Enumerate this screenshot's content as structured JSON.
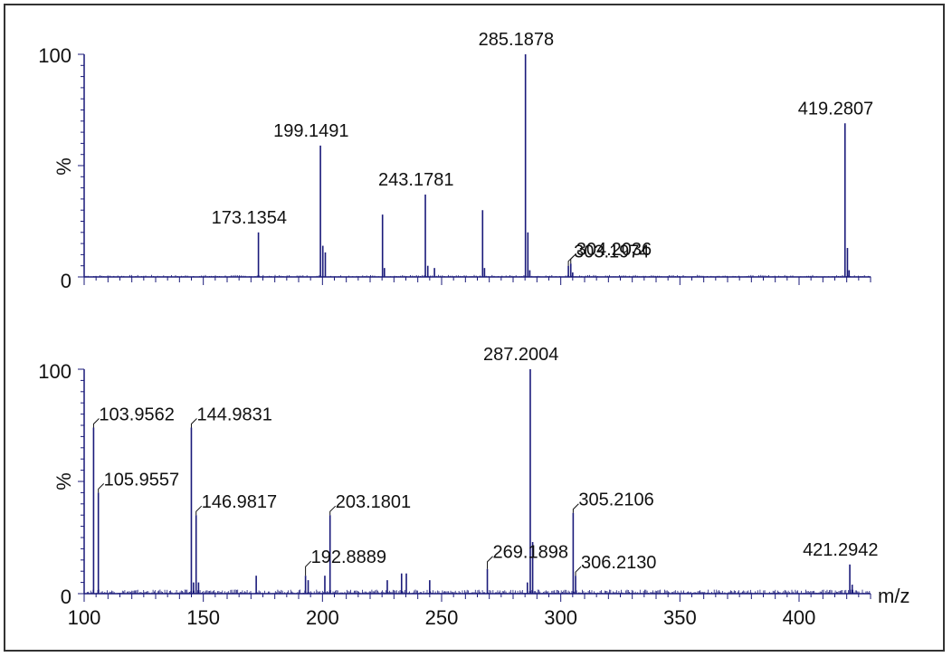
{
  "chart_data": [
    {
      "type": "bar",
      "panel": "top",
      "ylabel": "%",
      "yticks": [
        "0",
        "100"
      ],
      "xlim": [
        100,
        430
      ],
      "ylim": [
        0,
        100
      ],
      "color": "#1a1a7a",
      "peaks": [
        {
          "x": 173.1354,
          "y": 20
        },
        {
          "x": 199.1491,
          "y": 59
        },
        {
          "x": 200.15,
          "y": 14
        },
        {
          "x": 201.2,
          "y": 11
        },
        {
          "x": 225.2,
          "y": 28
        },
        {
          "x": 226.0,
          "y": 4
        },
        {
          "x": 243.1781,
          "y": 37
        },
        {
          "x": 244.2,
          "y": 5
        },
        {
          "x": 247.0,
          "y": 4
        },
        {
          "x": 267.2,
          "y": 30
        },
        {
          "x": 268.0,
          "y": 4
        },
        {
          "x": 285.1878,
          "y": 100
        },
        {
          "x": 286.2,
          "y": 20
        },
        {
          "x": 287.0,
          "y": 3
        },
        {
          "x": 303.1974,
          "y": 5
        },
        {
          "x": 304.2036,
          "y": 6
        },
        {
          "x": 305.0,
          "y": 2
        },
        {
          "x": 419.2807,
          "y": 69
        },
        {
          "x": 420.3,
          "y": 13
        },
        {
          "x": 421.0,
          "y": 3
        }
      ],
      "labels": [
        {
          "x": 173.1354,
          "text": "173.1354"
        },
        {
          "x": 199.1491,
          "text": "199.1491"
        },
        {
          "x": 243.1781,
          "text": "243.1781"
        },
        {
          "x": 285.1878,
          "text": "285.1878"
        },
        {
          "x": 303.1974,
          "text": "303.1974"
        },
        {
          "x": 304.2036,
          "text": "304.2036"
        },
        {
          "x": 419.2807,
          "text": "419.2807"
        }
      ]
    },
    {
      "type": "bar",
      "panel": "bottom",
      "ylabel": "%",
      "xlabel": "m/z",
      "yticks": [
        "0",
        "100"
      ],
      "xticks": [
        "100",
        "150",
        "200",
        "250",
        "300",
        "350",
        "400"
      ],
      "xlim": [
        100,
        430
      ],
      "ylim": [
        0,
        100
      ],
      "color": "#1a1a7a",
      "peaks": [
        {
          "x": 103.9562,
          "y": 74
        },
        {
          "x": 105.9557,
          "y": 45
        },
        {
          "x": 144.9831,
          "y": 74
        },
        {
          "x": 145.9,
          "y": 5
        },
        {
          "x": 146.9817,
          "y": 35
        },
        {
          "x": 148.0,
          "y": 5
        },
        {
          "x": 172.2,
          "y": 8
        },
        {
          "x": 192.8889,
          "y": 8
        },
        {
          "x": 194.0,
          "y": 6
        },
        {
          "x": 201.0,
          "y": 8
        },
        {
          "x": 203.1801,
          "y": 35
        },
        {
          "x": 227.2,
          "y": 6
        },
        {
          "x": 233.2,
          "y": 9
        },
        {
          "x": 235.2,
          "y": 9
        },
        {
          "x": 245.0,
          "y": 6
        },
        {
          "x": 269.1898,
          "y": 11
        },
        {
          "x": 286.0,
          "y": 5
        },
        {
          "x": 287.2004,
          "y": 100
        },
        {
          "x": 288.2,
          "y": 23
        },
        {
          "x": 305.2106,
          "y": 36
        },
        {
          "x": 306.213,
          "y": 8
        },
        {
          "x": 421.2942,
          "y": 13
        },
        {
          "x": 422.3,
          "y": 4
        }
      ],
      "labels": [
        {
          "x": 103.9562,
          "text": "103.9562"
        },
        {
          "x": 105.9557,
          "text": "105.9557"
        },
        {
          "x": 144.9831,
          "text": "144.9831"
        },
        {
          "x": 146.9817,
          "text": "146.9817"
        },
        {
          "x": 192.8889,
          "text": "192.8889"
        },
        {
          "x": 203.1801,
          "text": "203.1801"
        },
        {
          "x": 269.1898,
          "text": "269.1898"
        },
        {
          "x": 287.2004,
          "text": "287.2004"
        },
        {
          "x": 305.2106,
          "text": "305.2106"
        },
        {
          "x": 306.213,
          "text": "306.2130"
        },
        {
          "x": 421.2942,
          "text": "421.2942"
        }
      ]
    }
  ]
}
